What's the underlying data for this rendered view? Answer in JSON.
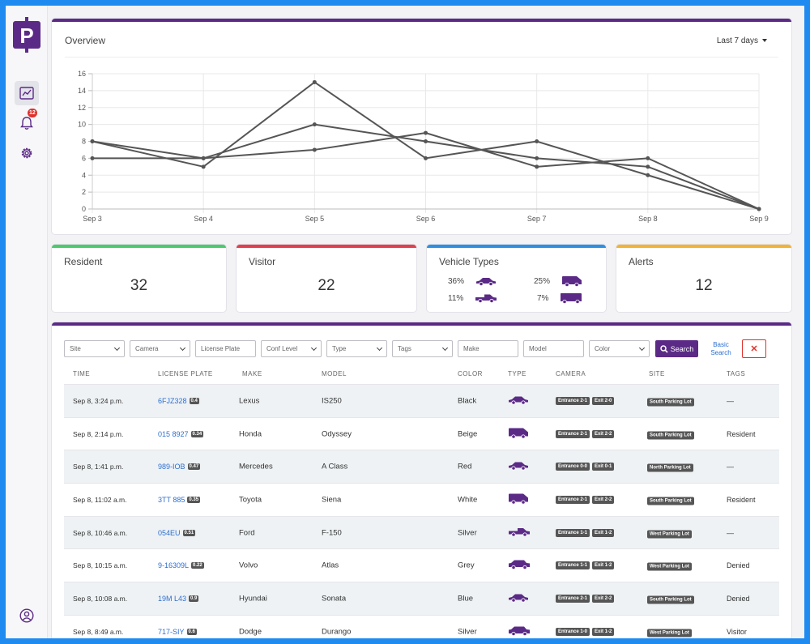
{
  "sidebar": {
    "logo_letter": "P",
    "notification_count": "12"
  },
  "overview": {
    "title": "Overview",
    "range_label": "Last 7 days",
    "chart_data": {
      "type": "line",
      "title": "",
      "xlabel": "",
      "ylabel": "",
      "categories": [
        "Sep 3",
        "Sep 4",
        "Sep 5",
        "Sep 6",
        "Sep 7",
        "Sep 8",
        "Sep 9"
      ],
      "ylim": [
        0,
        16
      ],
      "yticks": [
        0,
        2,
        4,
        6,
        8,
        10,
        12,
        14,
        16
      ],
      "grid": true,
      "series": [
        {
          "values": [
            8,
            5,
            15,
            6,
            8,
            4,
            0
          ]
        },
        {
          "values": [
            6,
            6,
            10,
            8,
            6,
            5,
            0
          ]
        },
        {
          "values": [
            8,
            6,
            7,
            9,
            5,
            6,
            0
          ]
        }
      ],
      "line_color": "#555555"
    }
  },
  "stats": {
    "resident": {
      "title": "Resident",
      "value": "32",
      "accent": "#4cc96b"
    },
    "visitor": {
      "title": "Visitor",
      "value": "22",
      "accent": "#e0404e"
    },
    "vehicle_types": {
      "title": "Vehicle Types",
      "accent": "#2e8fe0",
      "items": [
        {
          "pct": "36%",
          "icon": "sedan-icon"
        },
        {
          "pct": "25%",
          "icon": "van-icon"
        },
        {
          "pct": "11%",
          "icon": "pickup-icon"
        },
        {
          "pct": "7%",
          "icon": "truck-icon"
        }
      ]
    },
    "alerts": {
      "title": "Alerts",
      "value": "12",
      "accent": "#f2b233"
    }
  },
  "filters": {
    "site": "Site",
    "camera": "Camera",
    "license_plate": "License Plate",
    "conf_level": "Conf Level",
    "type": "Type",
    "tags": "Tags",
    "make": "Make",
    "model": "Model",
    "color": "Color",
    "search_label": "Search",
    "basic_search_line1": "Basic",
    "basic_search_line2": "Search",
    "clear_symbol": "✕"
  },
  "table": {
    "headers": {
      "time": "TIME",
      "plate": "LICENSE PLATE",
      "make": "MAKE",
      "model": "MODEL",
      "color": "COLOR",
      "type": "TYPE",
      "camera": "CAMERA",
      "site": "SITE",
      "tags": "TAGS"
    },
    "rows": [
      {
        "time": "Sep 8, 3:24 p.m.",
        "plate": "6FJZ328",
        "conf": "0.4",
        "make": "Lexus",
        "model": "IS250",
        "color": "Black",
        "type": "sedan",
        "cam1": "Entrance 2-1",
        "cam2": "Exit 2-0",
        "site": "South Parking Lot",
        "tags": "—"
      },
      {
        "time": "Sep 8, 2:14 p.m.",
        "plate": "015 8927",
        "conf": "0.34",
        "make": "Honda",
        "model": "Odyssey",
        "color": "Beige",
        "type": "van",
        "cam1": "Entrance 2-1",
        "cam2": "Exit 2-2",
        "site": "South Parking Lot",
        "tags": "Resident"
      },
      {
        "time": "Sep 8, 1:41 p.m.",
        "plate": "989-IOB",
        "conf": "0.47",
        "make": "Mercedes",
        "model": "A Class",
        "color": "Red",
        "type": "sedan",
        "cam1": "Entrance 0-0",
        "cam2": "Exit 0-1",
        "site": "North Parking Lot",
        "tags": "—"
      },
      {
        "time": "Sep 8, 11:02 a.m.",
        "plate": "3TT 885",
        "conf": "0.35",
        "make": "Toyota",
        "model": "Siena",
        "color": "White",
        "type": "van",
        "cam1": "Entrance 2-1",
        "cam2": "Exit 2-2",
        "site": "South Parking Lot",
        "tags": "Resident"
      },
      {
        "time": "Sep 8, 10:46 a.m.",
        "plate": "054EU",
        "conf": "0.51",
        "make": "Ford",
        "model": "F-150",
        "color": "Silver",
        "type": "pickup",
        "cam1": "Entrance 1-1",
        "cam2": "Exit 1-2",
        "site": "West Parking Lot",
        "tags": "—"
      },
      {
        "time": "Sep 8, 10:15 a.m.",
        "plate": "9-16309L",
        "conf": "0.22",
        "make": "Volvo",
        "model": "Atlas",
        "color": "Grey",
        "type": "suv",
        "cam1": "Entrance 1-1",
        "cam2": "Exit 1-2",
        "site": "West Parking Lot",
        "tags": "Denied"
      },
      {
        "time": "Sep 8, 10:08 a.m.",
        "plate": "19M L43",
        "conf": "0.9",
        "make": "Hyundai",
        "model": "Sonata",
        "color": "Blue",
        "type": "sedan",
        "cam1": "Entrance 2-1",
        "cam2": "Exit 2-2",
        "site": "South Parking Lot",
        "tags": "Denied"
      },
      {
        "time": "Sep 8, 8:49 a.m.",
        "plate": "717-SIY",
        "conf": "0.6",
        "make": "Dodge",
        "model": "Durango",
        "color": "Silver",
        "type": "suv",
        "cam1": "Entrance 1-0",
        "cam2": "Exit 1-2",
        "site": "West Parking Lot",
        "tags": "Visitor"
      }
    ]
  }
}
